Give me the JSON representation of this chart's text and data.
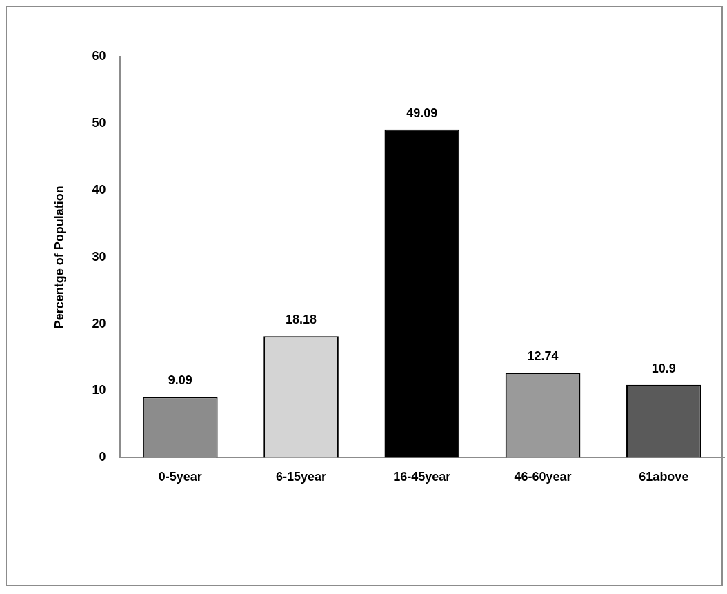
{
  "chart_data": {
    "type": "bar",
    "ylabel": "Percentge of Population",
    "categories": [
      "0-5year",
      "6-15year",
      "16-45year",
      "46-60year",
      "61above"
    ],
    "values": [
      9.09,
      18.18,
      49.09,
      12.74,
      10.9
    ],
    "colors": [
      "#8c8c8c",
      "#d4d4d4",
      "#000000",
      "#9a9a9a",
      "#5a5a5a"
    ],
    "ylim": [
      0,
      60
    ],
    "yticks": [
      0,
      10,
      20,
      30,
      40,
      50,
      60
    ],
    "data_labels": true,
    "grid": false,
    "legend": false
  }
}
